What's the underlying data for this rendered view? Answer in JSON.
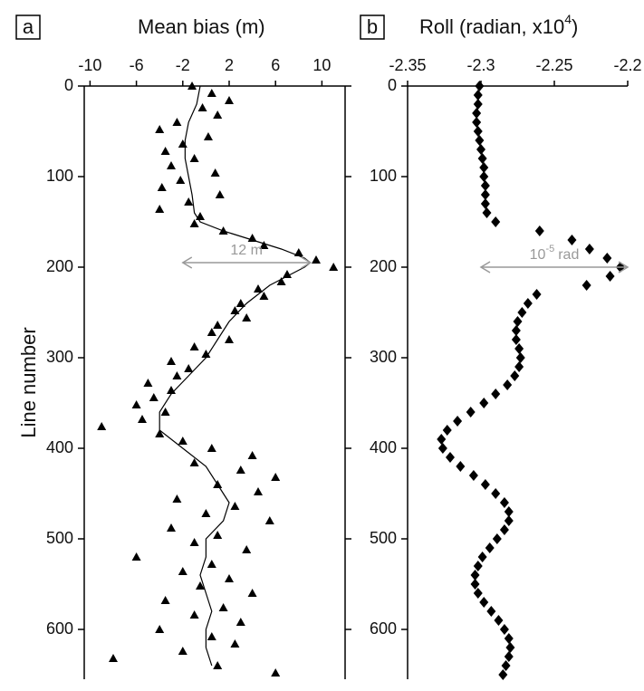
{
  "chart_data": [
    {
      "type": "scatter",
      "label": "a",
      "title": "Mean bias (m)",
      "y_label": "Line number",
      "xlim": [
        -10.5,
        12
      ],
      "xticks": [
        -10,
        -6,
        -2,
        2,
        6,
        10
      ],
      "ylim": [
        0,
        655
      ],
      "yticks": [
        0,
        100,
        200,
        300,
        400,
        500,
        600
      ],
      "y_inverted": true,
      "series": [
        {
          "marker": "triangle",
          "color": "#000000",
          "x": [
            -1.2,
            0.5,
            2.0,
            -0.3,
            1.0,
            -2.5,
            -4.0,
            0.2,
            -2.0,
            -3.5,
            -1.0,
            -3.0,
            0.8,
            -2.2,
            -3.8,
            1.2,
            -1.5,
            -4.0,
            -0.5,
            -1.0,
            1.5,
            4.0,
            5.0,
            8.0,
            9.5,
            11.0,
            7.0,
            6.5,
            4.5,
            5.0,
            3.0,
            2.5,
            3.5,
            1.0,
            0.5,
            2.0,
            -1.0,
            0.0,
            -3.0,
            -1.5,
            -2.5,
            -5.0,
            -3.0,
            -4.5,
            -6.0,
            -3.5,
            -5.5,
            -9.0,
            -4.0,
            -2.0,
            0.5,
            4.0,
            -1.0,
            3.0,
            6.0,
            1.0,
            4.5,
            -2.5,
            2.5,
            0.0,
            5.5,
            -3.0,
            1.0,
            -1.0,
            3.5,
            -6.0,
            0.5,
            -2.0,
            2.0,
            -0.5,
            4.0,
            -3.5,
            1.5,
            -1.0,
            3.0,
            -4.0,
            0.5,
            2.5,
            -2.0,
            -8.0,
            1.0,
            6.0
          ],
          "values": [
            0,
            8,
            16,
            24,
            32,
            40,
            48,
            56,
            64,
            72,
            80,
            88,
            96,
            104,
            112,
            120,
            128,
            136,
            144,
            152,
            160,
            168,
            176,
            184,
            192,
            200,
            208,
            216,
            224,
            232,
            240,
            248,
            256,
            264,
            272,
            280,
            288,
            296,
            304,
            312,
            320,
            328,
            336,
            344,
            352,
            360,
            368,
            376,
            384,
            392,
            400,
            408,
            416,
            424,
            432,
            440,
            448,
            456,
            464,
            472,
            480,
            488,
            496,
            504,
            512,
            520,
            528,
            536,
            544,
            552,
            560,
            568,
            576,
            584,
            592,
            600,
            608,
            616,
            624,
            632,
            640,
            648
          ]
        },
        {
          "marker": "line",
          "color": "#000000",
          "x": [
            -0.5,
            -0.8,
            -1.5,
            -1.8,
            -1.8,
            -1.5,
            -1.2,
            -1.0,
            -0.5,
            1.5,
            4.0,
            6.5,
            8.5,
            9.0,
            8.5,
            7.0,
            5.5,
            3.5,
            2.0,
            1.0,
            0.0,
            -1.5,
            -3.0,
            -4.0,
            -4.0,
            -2.0,
            0.0,
            1.0,
            2.0,
            1.5,
            0.0,
            0.0,
            -0.5,
            0.0,
            0.5,
            0.0,
            0.0,
            0.5
          ],
          "values": [
            0,
            20,
            40,
            60,
            80,
            100,
            120,
            140,
            150,
            160,
            170,
            180,
            190,
            195,
            200,
            210,
            220,
            240,
            260,
            280,
            300,
            320,
            340,
            360,
            380,
            400,
            420,
            440,
            460,
            480,
            500,
            520,
            540,
            560,
            580,
            600,
            620,
            640
          ]
        }
      ],
      "annotation": {
        "text": "12 m",
        "x_start": -2,
        "x_end": 9,
        "y": 195,
        "color": "#999999"
      }
    },
    {
      "type": "scatter",
      "label": "b",
      "title": "Roll (radian, x10",
      "title_sup": "4",
      "title_end": ")",
      "xlim": [
        -2.35,
        -2.2
      ],
      "xticks": [
        -2.35,
        -2.3,
        -2.25,
        -2.2
      ],
      "ylim": [
        0,
        655
      ],
      "yticks": [
        0,
        100,
        200,
        300,
        400,
        500,
        600
      ],
      "y_inverted": true,
      "series": [
        {
          "marker": "diamond",
          "color": "#000000",
          "x": [
            -2.301,
            -2.302,
            -2.302,
            -2.303,
            -2.303,
            -2.302,
            -2.301,
            -2.3,
            -2.299,
            -2.298,
            -2.298,
            -2.297,
            -2.297,
            -2.297,
            -2.296,
            -2.29,
            -2.26,
            -2.238,
            -2.226,
            -2.214,
            -2.205,
            -2.212,
            -2.228,
            -2.262,
            -2.268,
            -2.272,
            -2.275,
            -2.276,
            -2.276,
            -2.274,
            -2.273,
            -2.274,
            -2.277,
            -2.282,
            -2.29,
            -2.298,
            -2.307,
            -2.316,
            -2.323,
            -2.327,
            -2.326,
            -2.321,
            -2.314,
            -2.305,
            -2.297,
            -2.29,
            -2.284,
            -2.281,
            -2.281,
            -2.284,
            -2.289,
            -2.294,
            -2.299,
            -2.302,
            -2.304,
            -2.304,
            -2.302,
            -2.298,
            -2.293,
            -2.288,
            -2.284,
            -2.281,
            -2.28,
            -2.281,
            -2.283,
            -2.285
          ],
          "values": [
            0,
            10,
            20,
            30,
            40,
            50,
            60,
            70,
            80,
            90,
            100,
            110,
            120,
            130,
            140,
            150,
            160,
            170,
            180,
            190,
            200,
            210,
            220,
            230,
            240,
            250,
            260,
            270,
            280,
            290,
            300,
            310,
            320,
            330,
            340,
            350,
            360,
            370,
            380,
            390,
            400,
            410,
            420,
            430,
            440,
            450,
            460,
            470,
            480,
            490,
            500,
            510,
            520,
            530,
            540,
            550,
            560,
            570,
            580,
            590,
            600,
            610,
            620,
            630,
            640,
            650
          ]
        }
      ],
      "annotation": {
        "text": "10",
        "text_sup": "-5",
        "text_end": "rad",
        "x_start": -2.3,
        "x_end": -2.2,
        "y": 200,
        "color": "#999999"
      }
    }
  ]
}
